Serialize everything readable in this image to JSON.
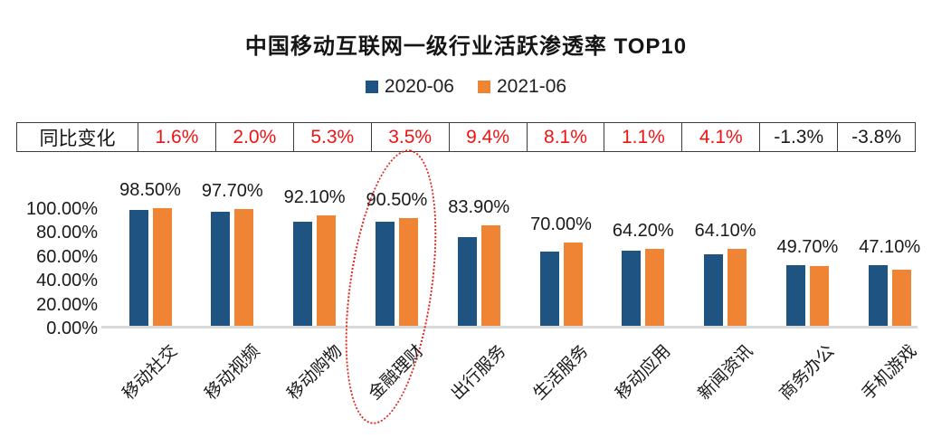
{
  "title": "中国移动互联网一级行业活跃渗透率 TOP10",
  "legend": [
    {
      "label": "2020-06",
      "color": "#1f5381"
    },
    {
      "label": "2021-06",
      "color": "#ee8434"
    }
  ],
  "yoy_table": {
    "header": "同比变化",
    "values": [
      "1.6%",
      "2.0%",
      "5.3%",
      "3.5%",
      "9.4%",
      "8.1%",
      "1.1%",
      "4.1%",
      "-1.3%",
      "-3.8%"
    ],
    "positive_color": "#ed1414",
    "negative_color": "#1a1a1a"
  },
  "chart_data": {
    "type": "bar",
    "title": "中国移动互联网一级行业活跃渗透率 TOP10",
    "categories": [
      "移动社交",
      "移动视频",
      "移动购物",
      "金融理财",
      "出行服务",
      "生活服务",
      "移动应用",
      "新闻资讯",
      "商务办公",
      "手机游戏"
    ],
    "series": [
      {
        "name": "2020-06",
        "color": "#1f5381",
        "values": [
          96.9,
          95.7,
          86.8,
          87.0,
          74.5,
          61.9,
          63.1,
          60.0,
          51.0,
          50.9
        ]
      },
      {
        "name": "2021-06",
        "color": "#ee8434",
        "values": [
          98.5,
          97.7,
          92.1,
          90.5,
          83.9,
          70.0,
          64.2,
          64.1,
          49.7,
          47.1
        ]
      }
    ],
    "data_labels": [
      "98.50%",
      "97.70%",
      "92.10%",
      "90.50%",
      "83.90%",
      "70.00%",
      "64.20%",
      "64.10%",
      "49.70%",
      "47.10%"
    ],
    "data_labels_series": "2021-06",
    "yticks": [
      "100.00%",
      "80.00%",
      "60.00%",
      "40.00%",
      "20.00%",
      "0.00%"
    ],
    "ylim": [
      0,
      100
    ],
    "grid": false,
    "legend_position": "top",
    "annotation": {
      "type": "dashed-ellipse",
      "target_category": "金融理财",
      "target_index": 3,
      "color": "#e3241b"
    }
  }
}
